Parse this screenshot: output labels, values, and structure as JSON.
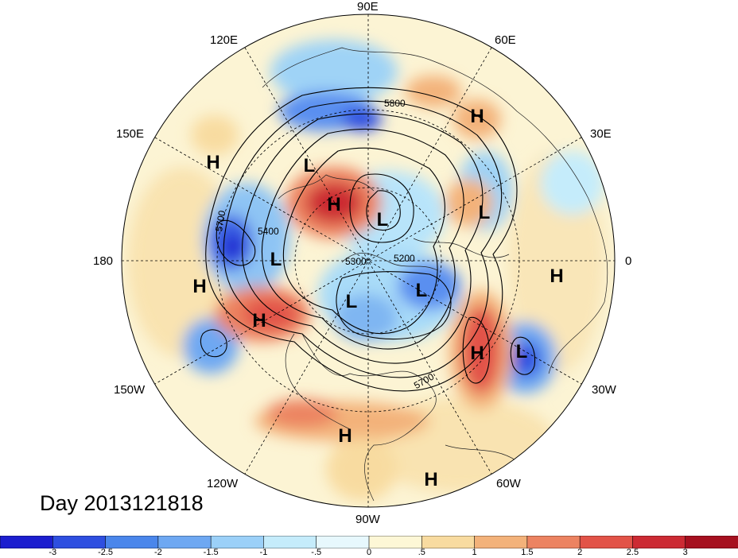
{
  "day_label": "Day 2013121818",
  "longitude_labels": [
    "90E",
    "60E",
    "30E",
    "0",
    "30W",
    "60W",
    "90W",
    "120W",
    "150W",
    "180",
    "150E",
    "120E"
  ],
  "contour_labels": [
    "5800",
    "5700",
    "5400",
    "5300",
    "5200",
    "5700"
  ],
  "pressure_centers": [
    {
      "id": "h-1",
      "type": "H"
    },
    {
      "id": "h-2",
      "type": "H"
    },
    {
      "id": "h-3",
      "type": "H"
    },
    {
      "id": "h-4",
      "type": "H"
    },
    {
      "id": "h-5",
      "type": "H"
    },
    {
      "id": "h-6",
      "type": "H"
    },
    {
      "id": "h-7",
      "type": "H"
    },
    {
      "id": "h-8",
      "type": "H"
    },
    {
      "id": "h-9",
      "type": "H"
    },
    {
      "id": "l-1",
      "type": "L"
    },
    {
      "id": "l-2",
      "type": "L"
    },
    {
      "id": "l-3",
      "type": "L"
    },
    {
      "id": "l-4",
      "type": "L"
    },
    {
      "id": "l-5",
      "type": "L"
    },
    {
      "id": "l-6",
      "type": "L"
    },
    {
      "id": "l-7",
      "type": "L"
    }
  ],
  "colorbar": {
    "colors": [
      "#1c1ecf",
      "#2e4fe0",
      "#4a86eb",
      "#6ea8f2",
      "#9bd0f8",
      "#c5ecfb",
      "#e7f8fd",
      "#fdf7d6",
      "#f8dba0",
      "#f3b27a",
      "#ec8361",
      "#e25348",
      "#cc2a33",
      "#a6101f"
    ],
    "ticks": [
      "-3",
      "-2.5",
      "-2",
      "-1.5",
      "-1",
      "-.5",
      "0",
      ".5",
      "1",
      "1.5",
      "2",
      "2.5",
      "3"
    ]
  }
}
